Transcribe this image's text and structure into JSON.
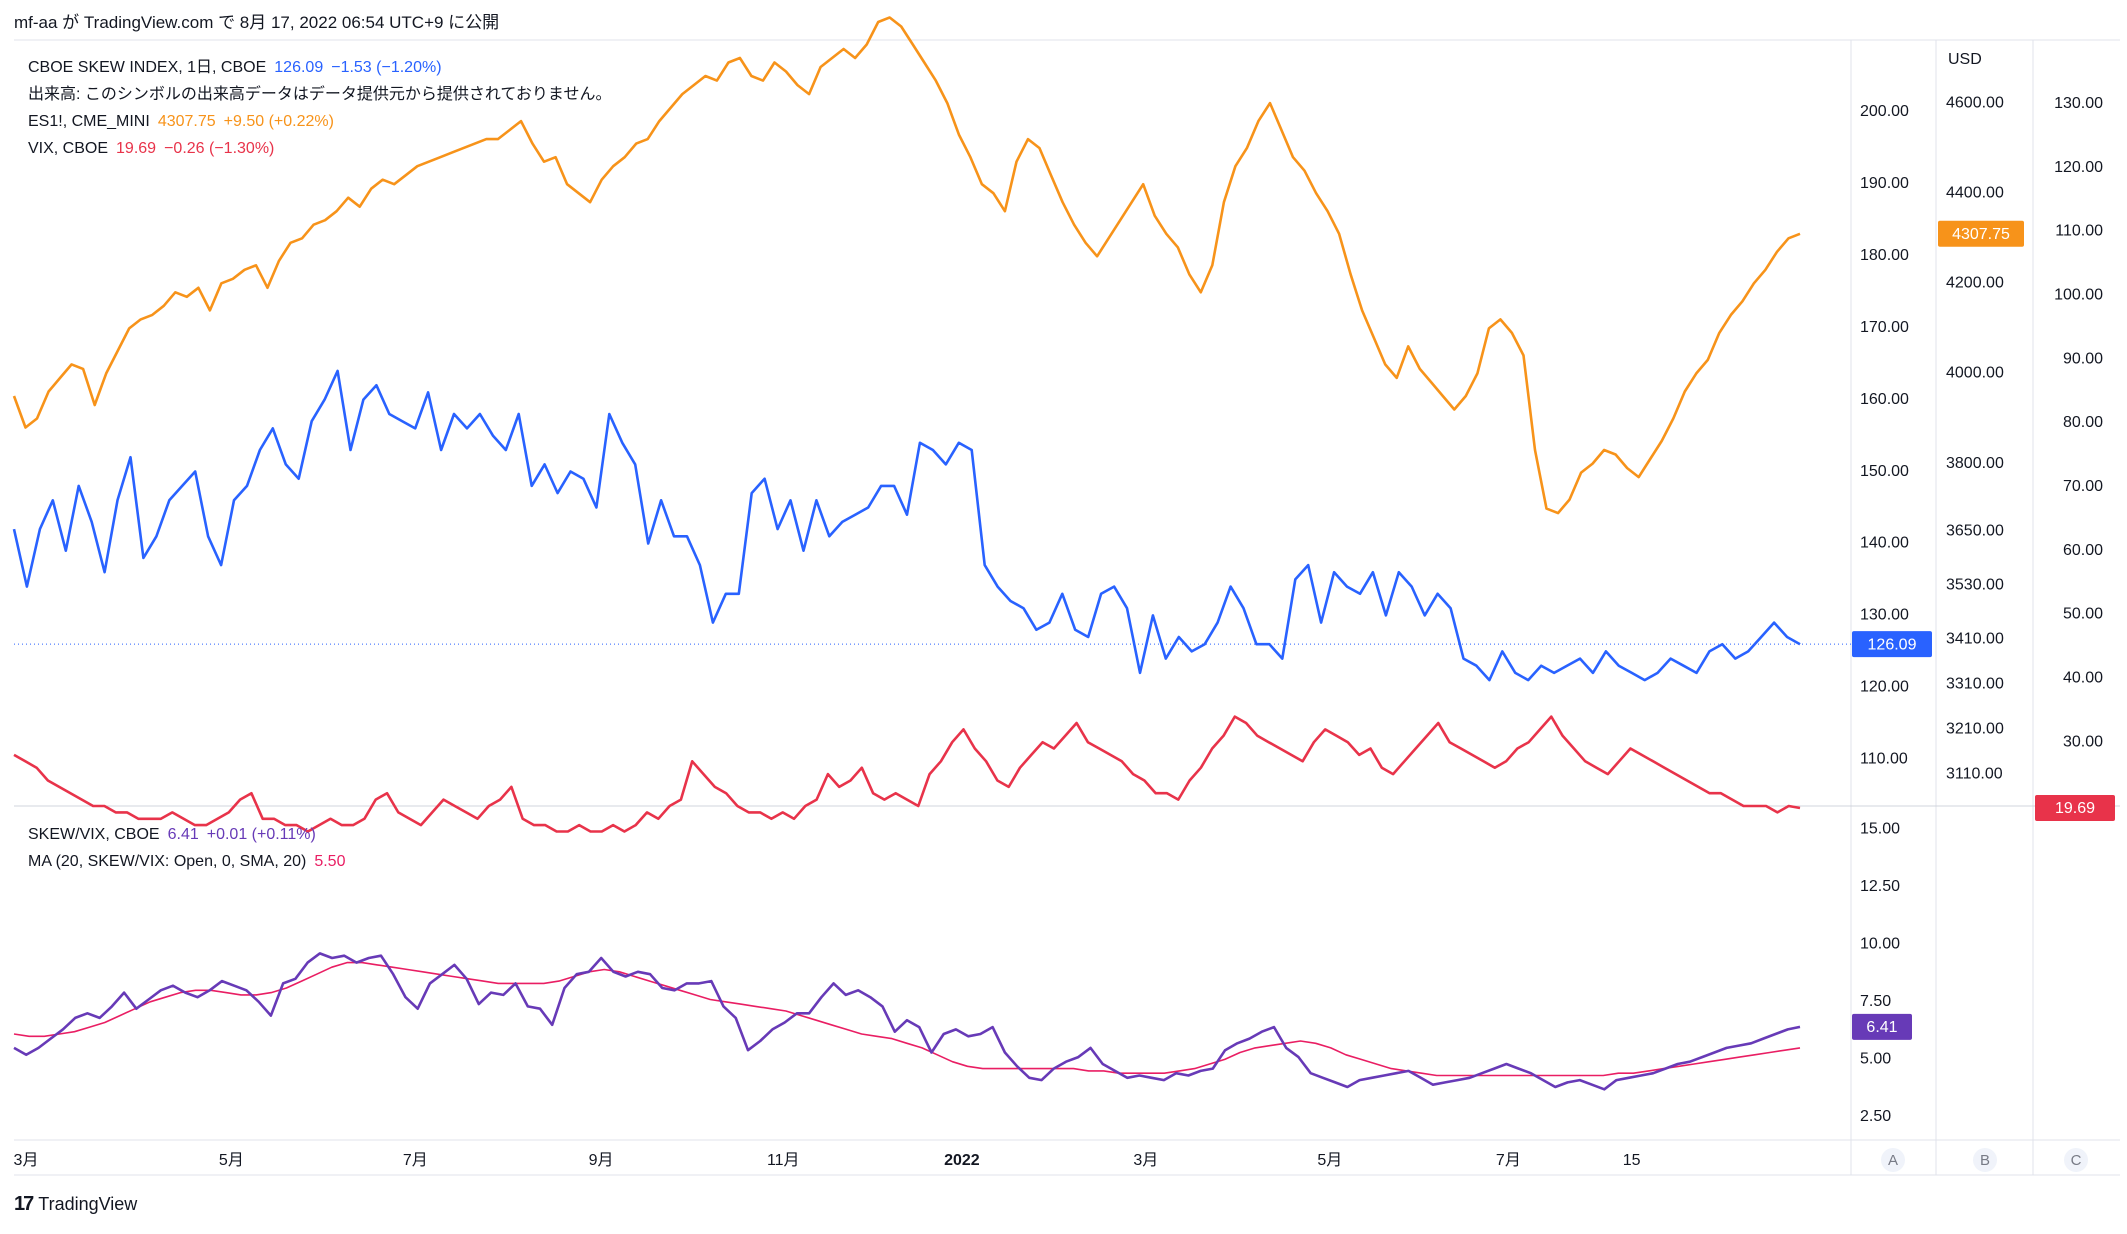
{
  "header": {
    "text": "mf-aa が TradingView.com で 8月 17, 2022 06:54 UTC+9 に公開"
  },
  "footer": {
    "brand": "TradingView"
  },
  "legend_top": [
    {
      "name": "CBOE SKEW INDEX, 1日, CBOE",
      "value": "126.09",
      "change": "−1.53 (−1.20%)",
      "color": "#2962ff"
    },
    {
      "name": "出来高: このシンボルの出来高データはデータ提供元から提供されておりません。",
      "value": "",
      "change": "",
      "color": "#131722"
    },
    {
      "name": "ES1!, CME_MINI",
      "value": "4307.75",
      "change": "+9.50 (+0.22%)",
      "color": "#f7931a"
    },
    {
      "name": "VIX, CBOE",
      "value": "19.69",
      "change": "−0.26 (−1.30%)",
      "color": "#e8334a"
    }
  ],
  "legend_bottom": [
    {
      "name": "SKEW/VIX, CBOE",
      "value": "6.41",
      "change": "+0.01 (+0.11%)",
      "color": "#673ab7"
    },
    {
      "name": "MA (20, SKEW/VIX: Open, 0, SMA, 20)",
      "value": "5.50",
      "change": "",
      "color": "#e91e63"
    }
  ],
  "axis_labels": {
    "usd": "USD",
    "skew_ticks": [
      "200.00",
      "190.00",
      "180.00",
      "170.00",
      "160.00",
      "150.00",
      "140.00",
      "130.00",
      "120.00",
      "110.00"
    ],
    "es_ticks": [
      "4600.00",
      "4400.00",
      "4200.00",
      "4000.00",
      "3800.00",
      "3650.00",
      "3530.00",
      "3410.00",
      "3310.00",
      "3210.00",
      "3110.00"
    ],
    "vix_ticks": [
      "130.00",
      "120.00",
      "110.00",
      "100.00",
      "90.00",
      "80.00",
      "70.00",
      "60.00",
      "50.00",
      "40.00",
      "30.00"
    ],
    "ratio_ticks": [
      "15.00",
      "12.50",
      "10.00",
      "7.50",
      "5.00",
      "2.50"
    ],
    "x_ticks": [
      "3月",
      "5月",
      "7月",
      "9月",
      "11月",
      "2022",
      "3月",
      "5月",
      "7月",
      "15"
    ],
    "scale_buttons": [
      "A",
      "B",
      "C"
    ]
  },
  "badges": {
    "skew": "126.09",
    "es": "4307.75",
    "vix": "19.69",
    "ratio": "6.41"
  },
  "colors": {
    "skew": "#2962ff",
    "es": "#f7931a",
    "vix": "#e8334a",
    "ratio": "#673ab7",
    "ma": "#e91e63"
  },
  "chart_data": [
    {
      "type": "line",
      "pane": "main",
      "x_range": [
        "2021-02-15",
        "2022-08-16"
      ],
      "series": [
        {
          "name": "CBOE SKEW INDEX",
          "axis": "skew",
          "ylim": [
            103.5,
            210
          ],
          "values": [
            142,
            134,
            142,
            146,
            139,
            148,
            143,
            136,
            146,
            152,
            138,
            141,
            146,
            148,
            150,
            141,
            137,
            146,
            148,
            153,
            156,
            151,
            149,
            157,
            160,
            164,
            153,
            160,
            162,
            158,
            157,
            156,
            161,
            153,
            158,
            156,
            158,
            155,
            153,
            158,
            148,
            151,
            147,
            150,
            149,
            145,
            158,
            154,
            151,
            140,
            146,
            141,
            141,
            137,
            129,
            133,
            133,
            147,
            149,
            142,
            146,
            139,
            146,
            141,
            143,
            144,
            145,
            148,
            148,
            144,
            154,
            153,
            151,
            154,
            153,
            137,
            134,
            132,
            131,
            128,
            129,
            133,
            128,
            127,
            133,
            134,
            131,
            122,
            130,
            124,
            127,
            125,
            126,
            129,
            134,
            131,
            126,
            126,
            124,
            135,
            137,
            129,
            136,
            134,
            133,
            136,
            130,
            136,
            134,
            130,
            133,
            131,
            124,
            123,
            121,
            125,
            122,
            121,
            123,
            122,
            123,
            124,
            122,
            125,
            123,
            122,
            121,
            122,
            124,
            123,
            122,
            125,
            126,
            124,
            125,
            127,
            129,
            127,
            126
          ],
          "label_value": "126.09"
        },
        {
          "name": "ES1!",
          "axis": "es",
          "ylim": [
            3040,
            4740
          ],
          "values": [
            3950,
            3880,
            3900,
            3960,
            3990,
            4020,
            4010,
            3930,
            4000,
            4050,
            4100,
            4120,
            4130,
            4150,
            4180,
            4170,
            4190,
            4140,
            4200,
            4210,
            4230,
            4240,
            4190,
            4250,
            4290,
            4300,
            4330,
            4340,
            4360,
            4390,
            4370,
            4410,
            4430,
            4420,
            4440,
            4460,
            4470,
            4480,
            4490,
            4500,
            4510,
            4520,
            4520,
            4540,
            4560,
            4510,
            4470,
            4480,
            4420,
            4400,
            4380,
            4430,
            4460,
            4480,
            4510,
            4520,
            4560,
            4590,
            4620,
            4640,
            4660,
            4650,
            4690,
            4700,
            4660,
            4650,
            4690,
            4670,
            4640,
            4620,
            4680,
            4700,
            4720,
            4700,
            4730,
            4780,
            4790,
            4770,
            4730,
            4690,
            4650,
            4600,
            4530,
            4480,
            4420,
            4400,
            4360,
            4470,
            4520,
            4500,
            4440,
            4380,
            4330,
            4290,
            4260,
            4300,
            4340,
            4380,
            4420,
            4350,
            4310,
            4280,
            4220,
            4180,
            4240,
            4380,
            4460,
            4500,
            4560,
            4600,
            4540,
            4480,
            4450,
            4400,
            4360,
            4310,
            4220,
            4140,
            4080,
            4020,
            3990,
            4060,
            4010,
            3980,
            3950,
            3920,
            3950,
            4000,
            4100,
            4120,
            4090,
            4040,
            3830,
            3700,
            3690,
            3720,
            3780,
            3800,
            3830,
            3820,
            3790,
            3770,
            3810,
            3850,
            3900,
            3960,
            4000,
            4030,
            4090,
            4130,
            4160,
            4200,
            4230,
            4270,
            4300,
            4310
          ]
        },
        {
          "name": "VIX",
          "axis": "vix",
          "ylim": [
            20,
            140
          ],
          "values": [
            28,
            27,
            26,
            24,
            23,
            22,
            21,
            20,
            20,
            19,
            19,
            18,
            18,
            18,
            19,
            18,
            17,
            17,
            18,
            19,
            21,
            22,
            18,
            18,
            17,
            17,
            16,
            17,
            18,
            17,
            17,
            18,
            21,
            22,
            19,
            18,
            17,
            19,
            21,
            20,
            19,
            18,
            20,
            21,
            23,
            18,
            17,
            17,
            16,
            16,
            17,
            16,
            16,
            17,
            16,
            17,
            19,
            18,
            20,
            21,
            27,
            25,
            23,
            22,
            20,
            19,
            19,
            18,
            19,
            18,
            20,
            21,
            25,
            23,
            24,
            26,
            22,
            21,
            22,
            21,
            20,
            25,
            27,
            30,
            32,
            29,
            27,
            24,
            23,
            26,
            28,
            30,
            29,
            31,
            33,
            30,
            29,
            28,
            27,
            25,
            24,
            22,
            22,
            21,
            24,
            26,
            29,
            31,
            34,
            33,
            31,
            30,
            29,
            28,
            27,
            30,
            32,
            31,
            30,
            28,
            29,
            26,
            25,
            27,
            29,
            31,
            33,
            30,
            29,
            28,
            27,
            26,
            27,
            29,
            30,
            32,
            34,
            31,
            29,
            27,
            26,
            25,
            27,
            29,
            28,
            27,
            26,
            25,
            24,
            23,
            22,
            22,
            21,
            20,
            20,
            20,
            19,
            20,
            19.69
          ]
        }
      ]
    },
    {
      "type": "line",
      "pane": "ratio",
      "x_range": [
        "2021-02-15",
        "2022-08-16"
      ],
      "ylim": [
        1.5,
        16
      ],
      "series": [
        {
          "name": "SKEW/VIX",
          "color": "#673ab7",
          "values": [
            5.5,
            5.2,
            5.5,
            5.9,
            6.3,
            6.8,
            7.0,
            6.8,
            7.3,
            7.9,
            7.2,
            7.6,
            8.0,
            8.2,
            7.9,
            7.7,
            8.0,
            8.4,
            8.2,
            8.0,
            7.5,
            6.9,
            8.3,
            8.5,
            9.2,
            9.6,
            9.4,
            9.5,
            9.2,
            9.4,
            9.5,
            8.7,
            7.7,
            7.2,
            8.3,
            8.7,
            9.1,
            8.5,
            7.4,
            7.9,
            7.8,
            8.3,
            7.3,
            7.2,
            6.5,
            8.1,
            8.7,
            8.8,
            9.4,
            8.8,
            8.6,
            8.8,
            8.7,
            8.1,
            8.0,
            8.3,
            8.3,
            8.4,
            7.3,
            6.8,
            5.4,
            5.8,
            6.3,
            6.6,
            7.0,
            7.0,
            7.7,
            8.3,
            7.8,
            8.0,
            7.7,
            7.3,
            6.2,
            6.7,
            6.4,
            5.3,
            6.1,
            6.3,
            6.0,
            6.1,
            6.4,
            5.3,
            4.7,
            4.2,
            4.1,
            4.6,
            4.9,
            5.1,
            5.5,
            4.8,
            4.5,
            4.2,
            4.3,
            4.2,
            4.1,
            4.4,
            4.3,
            4.5,
            4.6,
            5.4,
            5.7,
            5.9,
            6.2,
            6.4,
            5.5,
            5.1,
            4.4,
            4.2,
            4.0,
            3.8,
            4.1,
            4.2,
            4.3,
            4.4,
            4.5,
            4.2,
            3.9,
            4.0,
            4.1,
            4.2,
            4.4,
            4.6,
            4.8,
            4.6,
            4.4,
            4.1,
            3.8,
            4.0,
            4.1,
            3.9,
            3.7,
            4.1,
            4.2,
            4.3,
            4.4,
            4.6,
            4.8,
            4.9,
            5.1,
            5.3,
            5.5,
            5.6,
            5.7,
            5.9,
            6.1,
            6.3,
            6.41
          ]
        },
        {
          "name": "MA (20, SKEW/VIX: Open, 0, SMA, 20)",
          "color": "#e91e63",
          "values": [
            6.1,
            6.0,
            6.0,
            6.1,
            6.2,
            6.4,
            6.6,
            6.9,
            7.2,
            7.5,
            7.7,
            7.9,
            8.0,
            8.0,
            7.9,
            7.8,
            7.8,
            7.9,
            8.1,
            8.4,
            8.7,
            9.0,
            9.2,
            9.2,
            9.1,
            9.0,
            8.9,
            8.8,
            8.7,
            8.6,
            8.5,
            8.4,
            8.3,
            8.3,
            8.3,
            8.3,
            8.4,
            8.6,
            8.8,
            8.9,
            8.8,
            8.6,
            8.4,
            8.2,
            8.0,
            7.8,
            7.6,
            7.5,
            7.4,
            7.3,
            7.2,
            7.1,
            6.9,
            6.7,
            6.5,
            6.3,
            6.1,
            6.0,
            5.9,
            5.7,
            5.5,
            5.2,
            4.9,
            4.7,
            4.6,
            4.6,
            4.6,
            4.6,
            4.6,
            4.6,
            4.6,
            4.5,
            4.5,
            4.4,
            4.4,
            4.4,
            4.4,
            4.5,
            4.6,
            4.8,
            5.0,
            5.3,
            5.5,
            5.6,
            5.7,
            5.8,
            5.7,
            5.5,
            5.2,
            5.0,
            4.8,
            4.6,
            4.5,
            4.4,
            4.3,
            4.3,
            4.3,
            4.3,
            4.3,
            4.3,
            4.3,
            4.3,
            4.3,
            4.3,
            4.3,
            4.3,
            4.4,
            4.4,
            4.5,
            4.6,
            4.7,
            4.8,
            4.9,
            5.0,
            5.1,
            5.2,
            5.3,
            5.4,
            5.5
          ],
          "label_value": "5.50"
        }
      ]
    }
  ]
}
